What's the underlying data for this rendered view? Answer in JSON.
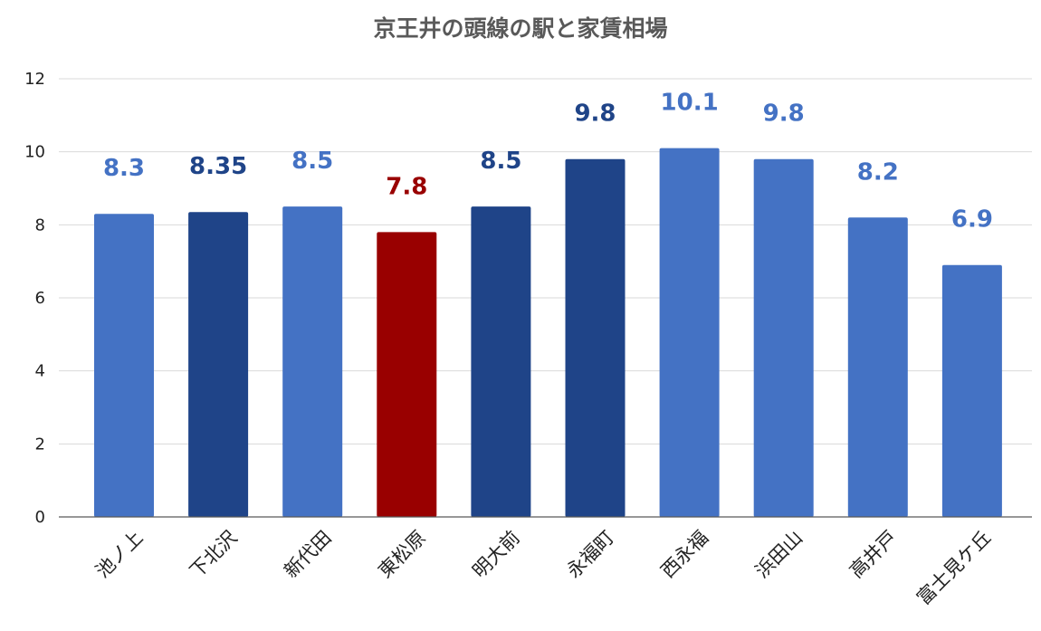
{
  "chart_data": {
    "type": "bar",
    "title": "京王井の頭線の駅と家賃相場",
    "categories": [
      "池ノ上",
      "下北沢",
      "新代田",
      "東松原",
      "明大前",
      "永福町",
      "西永福",
      "浜田山",
      "高井戸",
      "富士見ケ丘"
    ],
    "values": [
      8.3,
      8.35,
      8.5,
      7.8,
      8.5,
      9.8,
      10.1,
      9.8,
      8.2,
      6.9
    ],
    "data_labels": [
      "8.3",
      "8.35",
      "8.5",
      "7.8",
      "8.5",
      "9.8",
      "10.1",
      "9.8",
      "8.2",
      "6.9"
    ],
    "bar_colors": [
      "#4472c4",
      "#1f4488",
      "#4472c4",
      "#990000",
      "#1f4488",
      "#1f4488",
      "#4472c4",
      "#4472c4",
      "#4472c4",
      "#4472c4"
    ],
    "ylim": [
      0,
      12
    ],
    "yticks": [
      0,
      2,
      4,
      6,
      8,
      10,
      12
    ],
    "xlabel": "",
    "ylabel": "",
    "grid": true,
    "legend": "none"
  }
}
